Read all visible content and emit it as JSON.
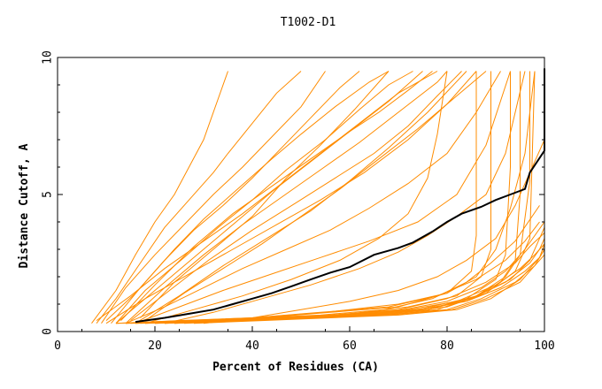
{
  "chart_data": {
    "type": "line",
    "title": "T1002-D1",
    "xlabel": "Percent of Residues (CA)",
    "ylabel": "Distance Cutoff, A",
    "xlim": [
      0,
      100
    ],
    "ylim": [
      0,
      10
    ],
    "xticks": [
      0,
      20,
      40,
      60,
      80,
      100
    ],
    "yticks": [
      0,
      5,
      10
    ],
    "grid": false,
    "colors": {
      "models": "#ff8c00",
      "highlight": "#000000",
      "axes": "#000000"
    },
    "series": [
      {
        "role": "model",
        "x": [
          7,
          12,
          16,
          20,
          24,
          27,
          30,
          33,
          35
        ],
        "y": [
          0.3,
          1.5,
          2.8,
          4,
          5,
          6,
          7,
          8.5,
          9.5
        ]
      },
      {
        "role": "model",
        "x": [
          8,
          12,
          17,
          22,
          27,
          32,
          35,
          40,
          45,
          50
        ],
        "y": [
          0.3,
          1.2,
          2.5,
          3.8,
          4.8,
          5.8,
          6.5,
          7.6,
          8.7,
          9.5
        ]
      },
      {
        "role": "model",
        "x": [
          9,
          14,
          20,
          26,
          32,
          38,
          44,
          50,
          55
        ],
        "y": [
          0.3,
          1.6,
          2.8,
          3.9,
          5,
          6,
          7.1,
          8.2,
          9.5
        ]
      },
      {
        "role": "model",
        "x": [
          10,
          16,
          22,
          28,
          34,
          40,
          46,
          52,
          58,
          62
        ],
        "y": [
          0.4,
          1.4,
          2.6,
          3.7,
          4.6,
          5.6,
          6.7,
          7.8,
          8.9,
          9.5
        ]
      },
      {
        "role": "model",
        "x": [
          11,
          17,
          24,
          30,
          37,
          44,
          50,
          57,
          64,
          68
        ],
        "y": [
          0.3,
          1.6,
          3.0,
          4.1,
          5.2,
          6.3,
          7.2,
          8.2,
          9.1,
          9.5
        ]
      },
      {
        "role": "model",
        "x": [
          12,
          18,
          26,
          33,
          40,
          47,
          55,
          62,
          68,
          73
        ],
        "y": [
          0.3,
          1.5,
          2.7,
          3.8,
          4.8,
          5.9,
          7,
          8.1,
          9,
          9.5
        ]
      },
      {
        "role": "model",
        "x": [
          13,
          20,
          28,
          36,
          44,
          52,
          60,
          68,
          75
        ],
        "y": [
          0.4,
          1.7,
          3.1,
          4.3,
          5.3,
          6.3,
          7.3,
          8.4,
          9.5
        ]
      },
      {
        "role": "model",
        "x": [
          14,
          22,
          30,
          38,
          46,
          54,
          62,
          70,
          78,
          80
        ],
        "y": [
          0.3,
          1.6,
          2.8,
          3.9,
          4.9,
          5.9,
          6.9,
          8,
          9.1,
          9.5
        ]
      },
      {
        "role": "model",
        "x": [
          15,
          23,
          31,
          40,
          49,
          57,
          65,
          72,
          78,
          83
        ],
        "y": [
          0.4,
          1.5,
          2.6,
          3.7,
          4.7,
          5.6,
          6.5,
          7.5,
          8.6,
          9.5
        ]
      },
      {
        "role": "model",
        "x": [
          16,
          25,
          34,
          43,
          52,
          60,
          68,
          76,
          84
        ],
        "y": [
          0.3,
          1.3,
          2.4,
          3.4,
          4.4,
          5.5,
          6.7,
          8,
          9.5
        ]
      },
      {
        "role": "model",
        "x": [
          17,
          24,
          32,
          40,
          47,
          54,
          61,
          68
        ],
        "y": [
          0.5,
          1.8,
          3.0,
          4.2,
          5.6,
          6.8,
          8.1,
          9.5
        ]
      },
      {
        "role": "model",
        "x": [
          18,
          26,
          34,
          42,
          50,
          58,
          66,
          74,
          82,
          88
        ],
        "y": [
          0.4,
          1.4,
          2.3,
          3.2,
          4.2,
          5.2,
          6.3,
          7.4,
          8.6,
          9.5
        ]
      },
      {
        "role": "model",
        "x": [
          10,
          18,
          27,
          36,
          45,
          54,
          63,
          72,
          80,
          86
        ],
        "y": [
          0.3,
          1.2,
          2.1,
          3.0,
          3.9,
          4.8,
          5.8,
          7.0,
          8.3,
          9.5
        ]
      },
      {
        "role": "model",
        "x": [
          8,
          15,
          22,
          30,
          38,
          46,
          54,
          62,
          70,
          78
        ],
        "y": [
          0.4,
          1.3,
          2.3,
          3.3,
          4.3,
          5.4,
          6.5,
          7.6,
          8.7,
          9.5
        ]
      },
      {
        "role": "model",
        "x": [
          12,
          20,
          28,
          36,
          44,
          52,
          60,
          66,
          72,
          77
        ],
        "y": [
          0.3,
          1.5,
          2.7,
          3.9,
          5.1,
          6.2,
          7.3,
          8.0,
          8.8,
          9.5
        ]
      },
      {
        "role": "model",
        "x": [
          14,
          22,
          30,
          38,
          47,
          56,
          64,
          72,
          80,
          86,
          91
        ],
        "y": [
          0.3,
          0.9,
          1.6,
          2.3,
          3.0,
          3.7,
          4.5,
          5.4,
          6.5,
          8.0,
          9.5
        ]
      },
      {
        "role": "model",
        "x": [
          16,
          25,
          34,
          44,
          54,
          64,
          74,
          82,
          88,
          93
        ],
        "y": [
          0.3,
          0.9,
          1.5,
          2.1,
          2.7,
          3.3,
          4.0,
          5.0,
          6.8,
          9.5
        ]
      },
      {
        "role": "model",
        "x": [
          18,
          28,
          38,
          48,
          58,
          66,
          72,
          76,
          78,
          80
        ],
        "y": [
          0.3,
          0.8,
          1.3,
          1.9,
          2.6,
          3.4,
          4.3,
          5.6,
          7.2,
          9.5
        ]
      },
      {
        "role": "model",
        "x": [
          22,
          32,
          42,
          52,
          62,
          70,
          76,
          82,
          88,
          92,
          96
        ],
        "y": [
          0.3,
          0.7,
          1.2,
          1.7,
          2.3,
          2.9,
          3.5,
          4.2,
          5.0,
          6.5,
          9.5
        ]
      },
      {
        "role": "model",
        "x": [
          30,
          40,
          50,
          60,
          70,
          78,
          84,
          90,
          94,
          98,
          100
        ],
        "y": [
          0.3,
          0.5,
          0.8,
          1.1,
          1.5,
          2.0,
          2.6,
          3.4,
          4.6,
          6.2,
          7.0
        ]
      },
      {
        "role": "model",
        "x": [
          12,
          25,
          40,
          55,
          70,
          80,
          86,
          90,
          93,
          96,
          98
        ],
        "y": [
          0.3,
          0.4,
          0.5,
          0.7,
          1.0,
          1.4,
          2.0,
          3.0,
          4.5,
          6.5,
          9.5
        ]
      },
      {
        "role": "model",
        "x": [
          14,
          28,
          42,
          56,
          70,
          80,
          85,
          86,
          86,
          86
        ],
        "y": [
          0.3,
          0.4,
          0.5,
          0.7,
          0.9,
          1.4,
          2.2,
          3.5,
          6.0,
          9.5
        ]
      },
      {
        "role": "model",
        "x": [
          16,
          30,
          44,
          58,
          72,
          82,
          87,
          89,
          89,
          89
        ],
        "y": [
          0.3,
          0.4,
          0.5,
          0.6,
          0.9,
          1.3,
          2.0,
          3.0,
          6.5,
          9.5
        ]
      },
      {
        "role": "model",
        "x": [
          18,
          32,
          46,
          60,
          74,
          84,
          90,
          92,
          93,
          93
        ],
        "y": [
          0.3,
          0.4,
          0.5,
          0.6,
          0.8,
          1.2,
          1.9,
          2.8,
          6.0,
          9.5
        ]
      },
      {
        "role": "model",
        "x": [
          20,
          34,
          48,
          62,
          76,
          85,
          91,
          94,
          95,
          95
        ],
        "y": [
          0.3,
          0.4,
          0.5,
          0.6,
          0.8,
          1.2,
          1.8,
          2.6,
          5.0,
          9.5
        ]
      },
      {
        "role": "model",
        "x": [
          22,
          36,
          50,
          64,
          78,
          86,
          92,
          95,
          97,
          97
        ],
        "y": [
          0.3,
          0.4,
          0.5,
          0.6,
          0.8,
          1.3,
          2.0,
          2.8,
          5.5,
          9.5
        ]
      },
      {
        "role": "model",
        "x": [
          24,
          38,
          52,
          66,
          80,
          88,
          94,
          97,
          98
        ],
        "y": [
          0.3,
          0.4,
          0.5,
          0.6,
          0.9,
          1.4,
          2.2,
          3.4,
          9.5
        ]
      },
      {
        "role": "model",
        "x": [
          12,
          26,
          40,
          54,
          68,
          78,
          86,
          92,
          96,
          99
        ],
        "y": [
          0.3,
          0.4,
          0.5,
          0.7,
          0.9,
          1.3,
          1.9,
          2.6,
          3.3,
          4.0
        ]
      },
      {
        "role": "model",
        "x": [
          14,
          28,
          42,
          56,
          70,
          80,
          88,
          94,
          97,
          100
        ],
        "y": [
          0.3,
          0.4,
          0.5,
          0.6,
          0.8,
          1.2,
          1.8,
          2.5,
          3.1,
          3.6
        ]
      },
      {
        "role": "model",
        "x": [
          16,
          30,
          44,
          58,
          72,
          82,
          90,
          95,
          98,
          100
        ],
        "y": [
          0.3,
          0.4,
          0.5,
          0.6,
          0.8,
          1.1,
          1.7,
          2.3,
          2.8,
          3.2
        ]
      },
      {
        "role": "model",
        "x": [
          18,
          32,
          46,
          60,
          74,
          84,
          91,
          96,
          99,
          100
        ],
        "y": [
          0.3,
          0.4,
          0.5,
          0.6,
          0.8,
          1.1,
          1.6,
          2.2,
          2.7,
          3.0
        ]
      },
      {
        "role": "model",
        "x": [
          20,
          34,
          48,
          62,
          76,
          85,
          92,
          97,
          99,
          100
        ],
        "y": [
          0.3,
          0.4,
          0.5,
          0.6,
          0.8,
          1.2,
          1.8,
          2.5,
          3.0,
          3.4
        ]
      },
      {
        "role": "model",
        "x": [
          22,
          36,
          50,
          64,
          78,
          86,
          93,
          97,
          100
        ],
        "y": [
          0.3,
          0.4,
          0.5,
          0.6,
          0.9,
          1.3,
          1.9,
          2.6,
          3.8
        ]
      },
      {
        "role": "model",
        "x": [
          24,
          38,
          52,
          66,
          80,
          87,
          94,
          98,
          100
        ],
        "y": [
          0.3,
          0.4,
          0.5,
          0.6,
          0.8,
          1.2,
          1.8,
          2.4,
          3.0
        ]
      },
      {
        "role": "model",
        "x": [
          26,
          40,
          54,
          68,
          81,
          88,
          95,
          98,
          100
        ],
        "y": [
          0.3,
          0.4,
          0.5,
          0.6,
          0.8,
          1.2,
          1.8,
          2.4,
          2.8
        ]
      },
      {
        "role": "model",
        "x": [
          28,
          42,
          56,
          70,
          82,
          89,
          95,
          99,
          100
        ],
        "y": [
          0.3,
          0.4,
          0.5,
          0.6,
          0.8,
          1.2,
          1.9,
          2.7,
          3.2
        ]
      },
      {
        "role": "model",
        "x": [
          15,
          28,
          41,
          54,
          67,
          77,
          84,
          89,
          94,
          99
        ],
        "y": [
          0.3,
          0.4,
          0.5,
          0.6,
          0.8,
          1.2,
          1.8,
          2.5,
          3.3,
          4.6
        ]
      },
      {
        "role": "model",
        "x": [
          17,
          30,
          44,
          58,
          71,
          80,
          87,
          92,
          96,
          100
        ],
        "y": [
          0.3,
          0.4,
          0.5,
          0.6,
          0.8,
          1.1,
          1.6,
          2.2,
          3.0,
          4.0
        ]
      },
      {
        "role": "highlight",
        "x": [
          16,
          22,
          27,
          32,
          36,
          40,
          44,
          48,
          52,
          56,
          60,
          65,
          70,
          73,
          77,
          80,
          83,
          87,
          90,
          93,
          96,
          97,
          100,
          100
        ],
        "y": [
          0.35,
          0.5,
          0.65,
          0.8,
          1.0,
          1.2,
          1.4,
          1.65,
          1.9,
          2.15,
          2.35,
          2.8,
          3.05,
          3.25,
          3.65,
          4.0,
          4.3,
          4.55,
          4.8,
          5.0,
          5.2,
          5.8,
          6.6,
          9.6
        ]
      }
    ]
  }
}
